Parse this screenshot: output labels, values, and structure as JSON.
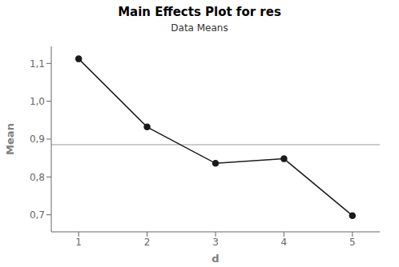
{
  "chart_data": {
    "type": "line",
    "title": "Main Effects Plot for res",
    "subtitle": "Data Means",
    "x_label": "d",
    "y_label": "Mean",
    "x": [
      1,
      2,
      3,
      4,
      5
    ],
    "values": [
      1.112,
      0.932,
      0.836,
      0.848,
      0.698
    ],
    "grand_mean": 0.8852,
    "color": "#1a1a1a",
    "marker": "circle",
    "line_style": "solid",
    "xlim": [
      0.6,
      5.4
    ],
    "ylim": [
      0.655,
      1.145
    ],
    "xticks": [
      1,
      2,
      3,
      4,
      5
    ],
    "yticks": [
      {
        "value": 0.7,
        "label": "0,7"
      },
      {
        "value": 0.8,
        "label": "0,8"
      },
      {
        "value": 0.9,
        "label": "0,9"
      },
      {
        "value": 1.0,
        "label": "1,0"
      },
      {
        "value": 1.1,
        "label": "1,1"
      }
    ],
    "grid": false
  }
}
